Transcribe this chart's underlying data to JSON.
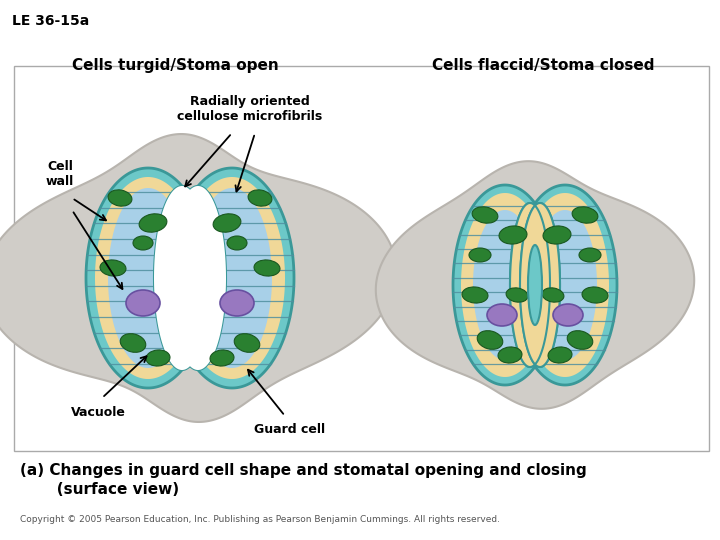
{
  "title_tag": "LE 36-15a",
  "label_left": "Cells turgid/Stoma open",
  "label_right": "Cells flaccid/Stoma closed",
  "caption_line1": "(a) Changes in guard cell shape and stomatal opening and closing",
  "caption_line2": "       (surface view)",
  "copyright": "Copyright © 2005 Pearson Education, Inc. Publishing as Pearson Benjamin Cummings. All rights reserved.",
  "annotation_microfibrils": "Radially oriented\ncellulose microfibrils",
  "annotation_cellwall": "Cell\nwall",
  "annotation_vacuole": "Vacuole",
  "annotation_guardcell": "Guard cell",
  "bg_color": "#ffffff",
  "epidermal_fill": "#d0cdc8",
  "epidermal_edge": "#b8b4ae",
  "cell_wall_color": "#6cc8c8",
  "cell_wall_edge": "#3a9898",
  "cytoplasm_color": "#f0d898",
  "vacuole_color": "#a8d0e8",
  "nucleus_color": "#9878c0",
  "nucleus_edge": "#6850a0",
  "chloroplast_color": "#2a8030",
  "chloroplast_edge": "#1a5820",
  "microfibril_color": "#5090a0",
  "stoma_color": "#ffffff",
  "frame_color": "#aaaaaa"
}
